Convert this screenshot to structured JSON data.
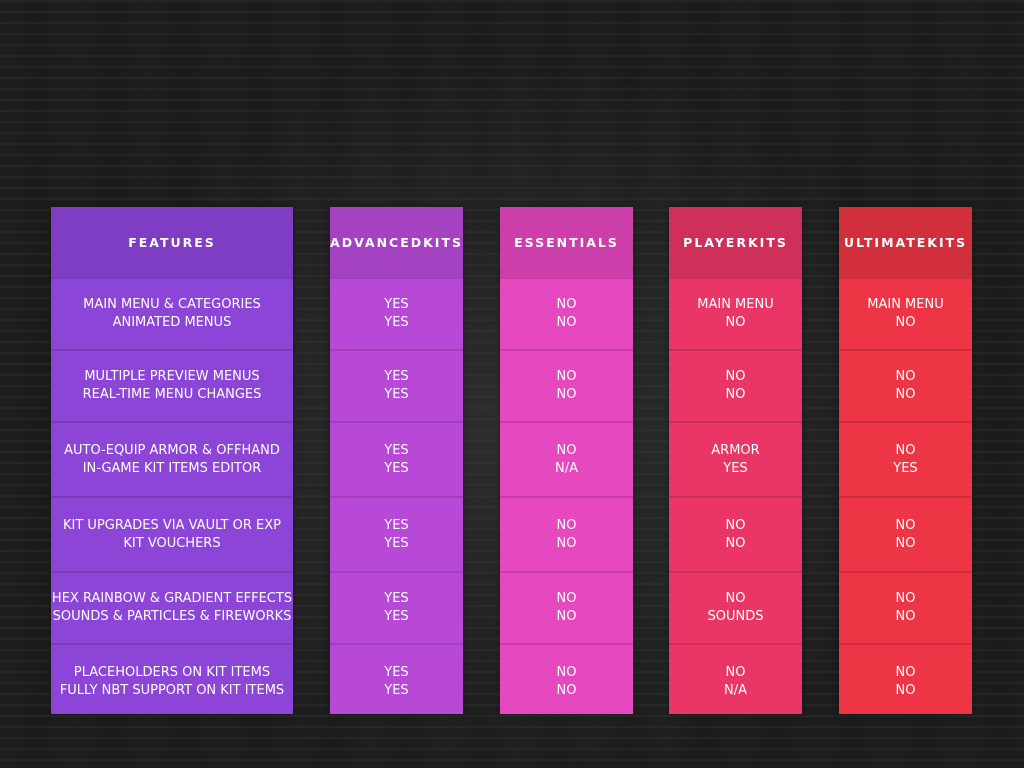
{
  "columns": [
    {
      "header": "FEATURES",
      "rows": [
        [
          "MAIN MENU & CATEGORIES",
          "ANIMATED MENUS"
        ],
        [
          "MULTIPLE PREVIEW MENUS",
          "REAL-TIME MENU CHANGES"
        ],
        [
          "AUTO-EQUIP ARMOR & OFFHAND",
          "IN-GAME KIT ITEMS EDITOR"
        ],
        [
          "KIT UPGRADES VIA VAULT OR EXP",
          "KIT VOUCHERS"
        ],
        [
          "HEX RAINBOW & GRADIENT EFFECTS",
          "SOUNDS & PARTICLES & FIREWORKS"
        ],
        [
          "PLACEHOLDERS ON KIT ITEMS",
          "FULLY NBT SUPPORT ON KIT ITEMS"
        ]
      ]
    },
    {
      "header": "ADVANCEDKITS",
      "rows": [
        [
          "YES",
          "YES"
        ],
        [
          "YES",
          "YES"
        ],
        [
          "YES",
          "YES"
        ],
        [
          "YES",
          "YES"
        ],
        [
          "YES",
          "YES"
        ],
        [
          "YES",
          "YES"
        ]
      ]
    },
    {
      "header": "ESSENTIALS",
      "rows": [
        [
          "NO",
          "NO"
        ],
        [
          "NO",
          "NO"
        ],
        [
          "NO",
          "N/A"
        ],
        [
          "NO",
          "NO"
        ],
        [
          "NO",
          "NO"
        ],
        [
          "NO",
          "NO"
        ]
      ]
    },
    {
      "header": "PLAYERKITS",
      "rows": [
        [
          "MAIN MENU",
          "NO"
        ],
        [
          "NO",
          "NO"
        ],
        [
          "ARMOR",
          "YES"
        ],
        [
          "NO",
          "NO"
        ],
        [
          "NO",
          "SOUNDS"
        ],
        [
          "NO",
          "N/A"
        ]
      ]
    },
    {
      "header": "ULTIMATEKITS",
      "rows": [
        [
          "MAIN MENU",
          "NO"
        ],
        [
          "NO",
          "NO"
        ],
        [
          "NO",
          "YES"
        ],
        [
          "NO",
          "NO"
        ],
        [
          "NO",
          "NO"
        ],
        [
          "NO",
          "NO"
        ]
      ]
    }
  ],
  "colors": {
    "background": "#1c1c1c",
    "features": "#8c45d7",
    "advancedkits": "#b849d6",
    "essentials": "#e648bf",
    "playerkits": "#ea3667",
    "ultimatekits": "#ee3545"
  }
}
